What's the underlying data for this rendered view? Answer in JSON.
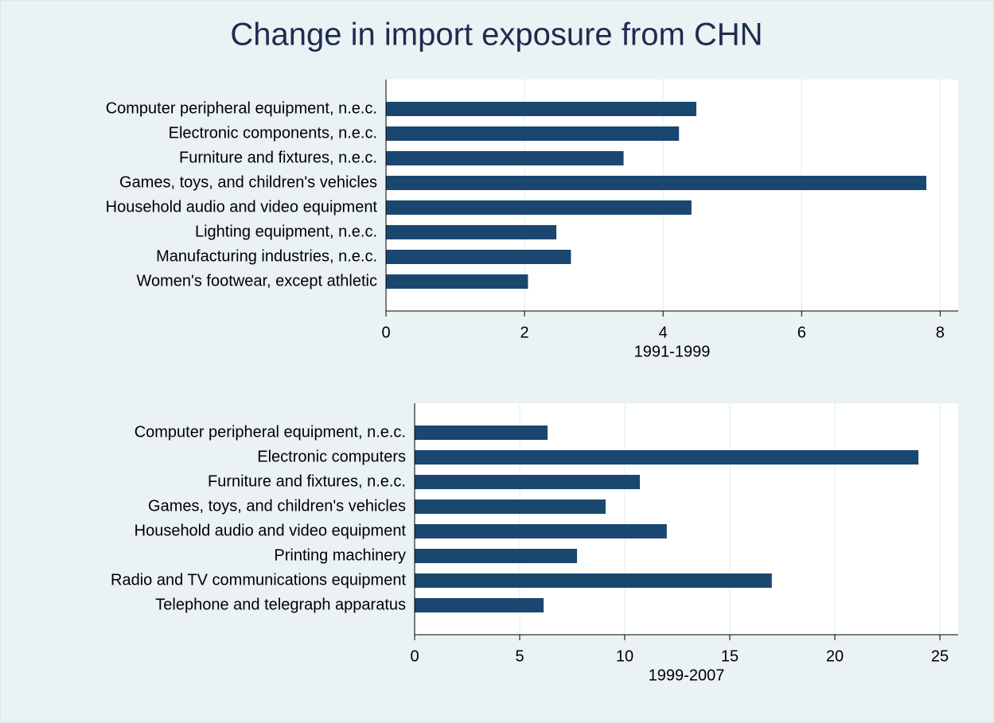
{
  "title": "Change in import exposure from CHN",
  "chart_data": [
    {
      "type": "barh",
      "xlabel": "1991-1999",
      "color": "#1a476f",
      "grid": true,
      "categories": [
        "Computer peripheral equipment, n.e.c.",
        "Electronic components, n.e.c.",
        "Furniture and fixtures, n.e.c.",
        "Games, toys, and children's vehicles",
        "Household audio and video equipment",
        "Lighting equipment, n.e.c.",
        "Manufacturing industries, n.e.c.",
        "Women's footwear, except athletic"
      ],
      "values": [
        4.48,
        4.23,
        3.43,
        7.8,
        4.41,
        2.46,
        2.67,
        2.05
      ],
      "xlim": [
        0,
        8.26
      ],
      "xticks": [
        0,
        2,
        4,
        6,
        8
      ]
    },
    {
      "type": "barh",
      "xlabel": "1999-2007",
      "color": "#1a476f",
      "grid": true,
      "categories": [
        "Computer peripheral equipment, n.e.c.",
        "Electronic computers",
        "Furniture and fixtures, n.e.c.",
        "Games, toys, and children's vehicles",
        "Household audio and video equipment",
        "Printing machinery",
        "Radio and TV communications equipment",
        "Telephone and telegraph apparatus"
      ],
      "values": [
        6.33,
        23.98,
        10.72,
        9.09,
        12.0,
        7.73,
        17.0,
        6.14
      ],
      "xlim": [
        0,
        25.87
      ],
      "xticks": [
        0,
        5,
        10,
        15,
        20,
        25
      ]
    }
  ]
}
